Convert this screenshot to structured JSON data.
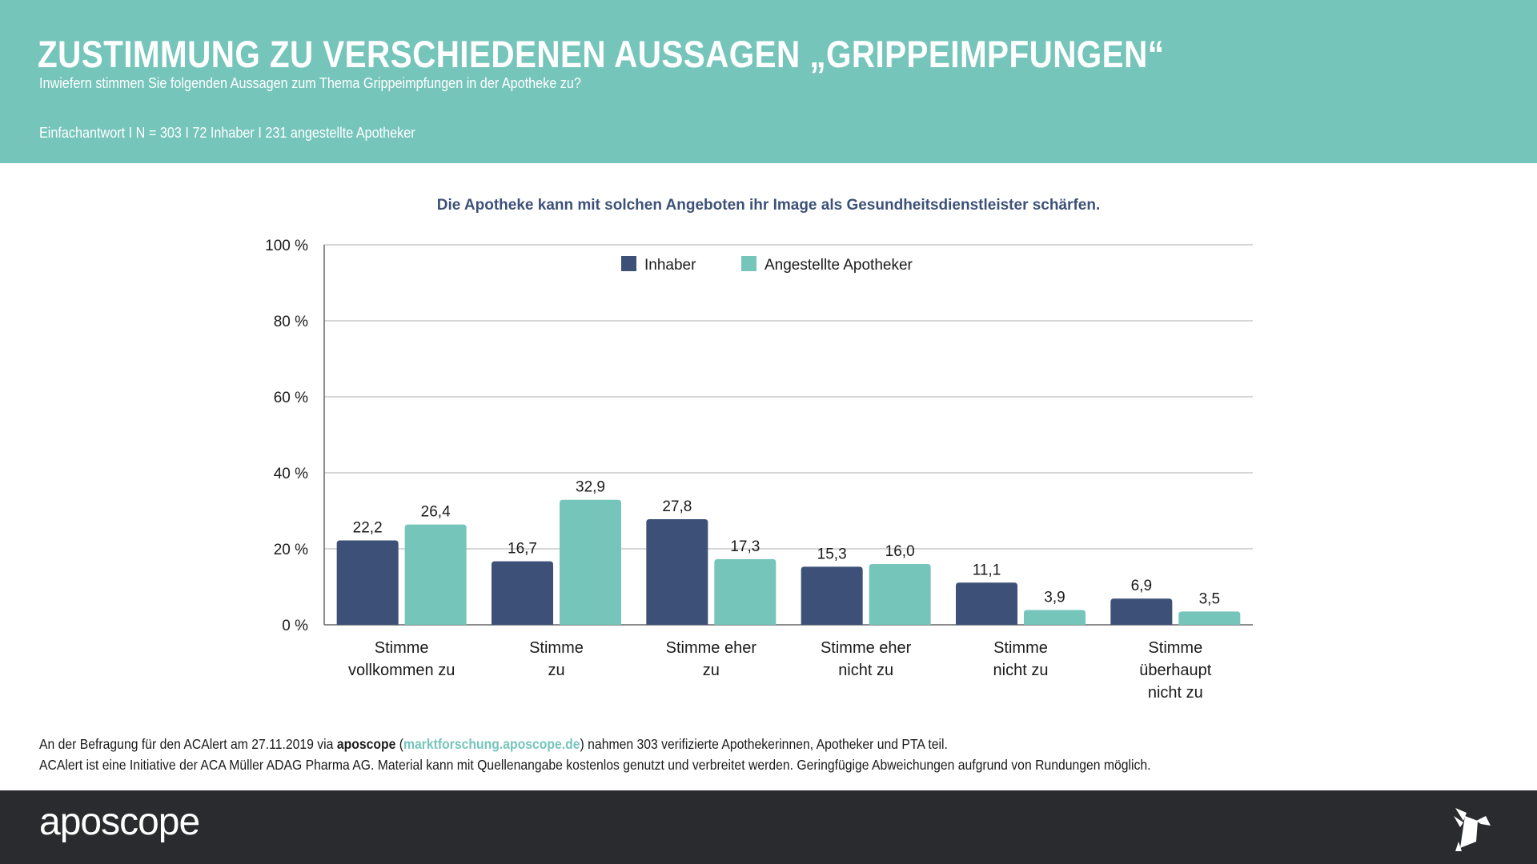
{
  "header": {
    "title": "ZUSTIMMUNG ZU VERSCHIEDENEN AUSSAGEN „GRIPPEIMPFUNGEN“",
    "subtitle": "Inwiefern stimmen Sie folgenden Aussagen zum Thema Grippeimpfungen in der Apotheke zu?",
    "meta": "Einfachantwort I N = 303 I 72 Inhaber I 231 angestellte Apotheker"
  },
  "colors": {
    "header_bg": "#76c5bb",
    "series_inhaber": "#3d5178",
    "series_angestellte": "#76c5bb",
    "footer_bg": "#2a2b2f"
  },
  "chart_data": {
    "type": "bar",
    "title": "Die Apotheke kann mit solchen Angeboten ihr Image als Gesundheitsdienstleister schärfen.",
    "xlabel": "",
    "ylabel": "",
    "ylim": [
      0,
      100
    ],
    "yticks": [
      0,
      20,
      40,
      60,
      80,
      100
    ],
    "ytick_labels": [
      "0 %",
      "20 %",
      "40 %",
      "60 %",
      "80 %",
      "100 %"
    ],
    "grid": true,
    "legend_position": "top-center",
    "categories": [
      [
        "Stimme",
        "vollkommen zu"
      ],
      [
        "Stimme",
        "zu"
      ],
      [
        "Stimme eher",
        "zu"
      ],
      [
        "Stimme eher",
        "nicht zu"
      ],
      [
        "Stimme",
        "nicht zu"
      ],
      [
        "Stimme",
        "überhaupt",
        "nicht zu"
      ]
    ],
    "series": [
      {
        "name": "Inhaber",
        "color": "#3d5178",
        "values": [
          22.2,
          16.7,
          27.8,
          15.3,
          11.1,
          6.9
        ],
        "labels": [
          "22,2",
          "16,7",
          "27,8",
          "15,3",
          "11,1",
          "6,9"
        ]
      },
      {
        "name": "Angestellte Apotheker",
        "color": "#76c5bb",
        "values": [
          26.4,
          32.9,
          17.3,
          16.0,
          3.9,
          3.5
        ],
        "labels": [
          "26,4",
          "32,9",
          "17,3",
          "16,0",
          "3,9",
          "3,5"
        ]
      }
    ]
  },
  "footnote": {
    "line1_prefix": "An der Befragung für den ACAlert am 27.11.2019 via ",
    "line1_brand": "aposcope",
    "line1_open": " (",
    "line1_link": "marktforschung.aposcope.de",
    "line1_suffix": ") nahmen 303 verifizierte Apothekerinnen, Apotheker und PTA teil.",
    "line2": "ACAlert ist eine Initiative der ACA Müller ADAG Pharma AG. Material kann mit Quellenangabe kostenlos genutzt und verbreitet werden. Geringfügige Abweichungen aufgrund von Rundungen möglich."
  },
  "footer": {
    "logo_text": "aposcope",
    "logo_icon": "origami-bird-icon"
  }
}
